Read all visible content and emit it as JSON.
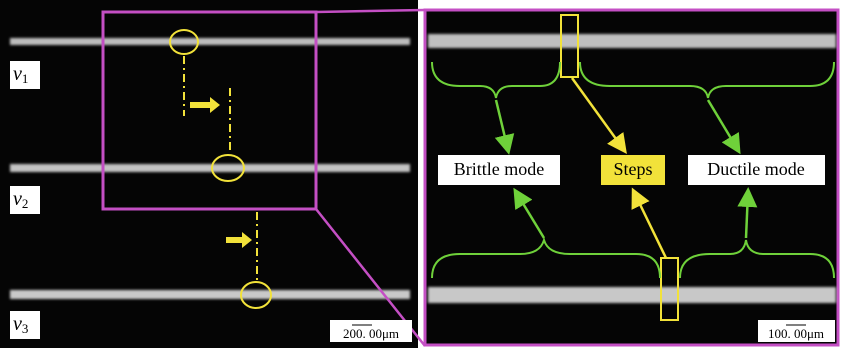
{
  "left_panel": {
    "speed_labels": [
      {
        "symbol": "v",
        "subscript": "1"
      },
      {
        "symbol": "v",
        "subscript": "2"
      },
      {
        "symbol": "v",
        "subscript": "3"
      }
    ],
    "scale_bar": "200. 00μm"
  },
  "right_panel": {
    "labels": {
      "brittle": "Brittle mode",
      "steps": "Steps",
      "ductile": "Ductile mode"
    },
    "scale_bar": "100. 00μm"
  }
}
